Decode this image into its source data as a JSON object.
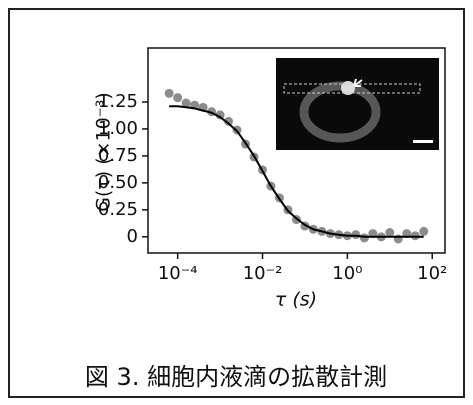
{
  "chart_data": {
    "type": "scatter",
    "x_label": "τ (s)",
    "y_label": "G(τ) (×10⁻³)",
    "caption": "図 3. 細胞内液滴の拡散計測",
    "xlog": true,
    "xlim": [
      2e-05,
      200
    ],
    "ylim": [
      -0.15,
      1.75
    ],
    "xticks": [
      {
        "value": 0.0001,
        "label": "10⁻⁴"
      },
      {
        "value": 0.01,
        "label": "10⁻²"
      },
      {
        "value": 1,
        "label": "10⁰"
      },
      {
        "value": 100,
        "label": "10²"
      }
    ],
    "yticks": [
      0,
      0.25,
      {
        "value": 0.5,
        "label": "0.50"
      },
      0.75,
      {
        "value": 1,
        "label": "1.00"
      },
      1.25
    ],
    "series": [
      {
        "type": "scatter",
        "color": "#8c8c8c",
        "x": [
          6.3e-05,
          0.0001,
          0.000158,
          0.000251,
          0.000398,
          0.000631,
          0.001,
          0.00158,
          0.00251,
          0.00398,
          0.00631,
          0.01,
          0.0158,
          0.0251,
          0.0398,
          0.0631,
          0.1,
          0.158,
          0.251,
          0.398,
          0.631,
          1,
          1.58,
          2.51,
          3.98,
          6.31,
          10,
          15.8,
          25.1,
          39.8,
          63.1
        ],
        "values": [
          1.33,
          1.29,
          1.24,
          1.22,
          1.2,
          1.16,
          1.13,
          1.07,
          0.99,
          0.86,
          0.74,
          0.62,
          0.47,
          0.36,
          0.25,
          0.16,
          0.1,
          0.07,
          0.05,
          0.03,
          0.02,
          0.01,
          0.02,
          -0.01,
          0.03,
          0,
          0.04,
          -0.02,
          0.03,
          0.01,
          0.05
        ]
      },
      {
        "type": "line",
        "color": "#000000",
        "x": [
          6.3e-05,
          0.0001,
          0.000158,
          0.000251,
          0.000398,
          0.000631,
          0.001,
          0.00158,
          0.00251,
          0.00398,
          0.00631,
          0.01,
          0.0158,
          0.0251,
          0.0398,
          0.0631,
          0.1,
          0.158,
          0.251,
          0.398,
          0.631,
          1,
          1.58,
          2.51,
          3.98,
          6.31,
          10,
          15.8,
          25.1,
          39.8,
          63.1
        ],
        "values": [
          1.21,
          1.21,
          1.2,
          1.19,
          1.17,
          1.15,
          1.11,
          1.05,
          0.98,
          0.87,
          0.75,
          0.61,
          0.47,
          0.35,
          0.24,
          0.17,
          0.11,
          0.07,
          0.05,
          0.03,
          0.02,
          0.01,
          0.01,
          0,
          0,
          0,
          0,
          0,
          0,
          0,
          0
        ]
      }
    ]
  }
}
